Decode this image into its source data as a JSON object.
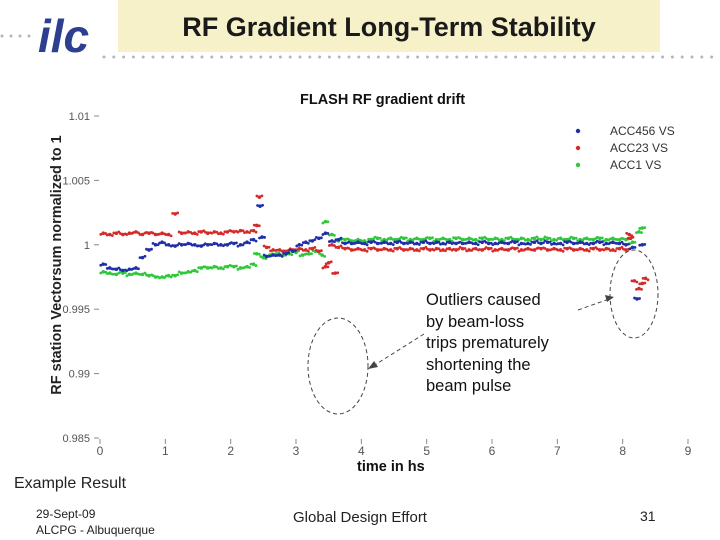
{
  "slide": {
    "title": "RF Gradient Long-Term Stability",
    "example_label": "Example Result",
    "footer_date": "29-Sept-09",
    "footer_venue": "ALCPG - Albuquerque",
    "footer_center": "Global Design Effort",
    "page_number": "31",
    "callout_text": "Outliers caused\nby beam-loss\ntrips prematurely\nshortening the\nbeam pulse",
    "logo_text": "ilc",
    "colors": {
      "title_background": "#f6f1c8",
      "logo": "#2d3f8f",
      "dots": "#b6b6b6"
    }
  },
  "chart_data": {
    "type": "scatter",
    "title": "FLASH RF gradient drift",
    "xlabel": "time in hs",
    "ylabel": "RF station Vectorsum normalized to 1",
    "xlim": [
      0,
      9
    ],
    "ylim": [
      0.985,
      1.01
    ],
    "xticks": [
      "0",
      "1",
      "2",
      "3",
      "4",
      "5",
      "6",
      "7",
      "8",
      "9"
    ],
    "yticks": [
      "0.985",
      "0.99",
      "0.995",
      "1",
      "1.005",
      "1.01"
    ],
    "legend_position": "top-right",
    "grid": false,
    "series": [
      {
        "name": "ACC456 VS",
        "color": "#1f2fa8",
        "points": [
          [
            0.05,
            0.9985
          ],
          [
            0.15,
            0.9982
          ],
          [
            0.25,
            0.9981
          ],
          [
            0.35,
            0.998
          ],
          [
            0.45,
            0.9981
          ],
          [
            0.55,
            0.9982
          ],
          [
            0.65,
            0.999
          ],
          [
            0.75,
            0.9996
          ],
          [
            0.85,
            1.0
          ],
          [
            0.95,
            1.0002
          ],
          [
            1.05,
            1.0
          ],
          [
            1.15,
            0.9999
          ],
          [
            1.25,
            1.0
          ],
          [
            1.35,
            1.0001
          ],
          [
            1.45,
            1.0
          ],
          [
            1.55,
            0.9999
          ],
          [
            1.65,
            1.0
          ],
          [
            1.75,
            1.0001
          ],
          [
            1.85,
            1.0
          ],
          [
            1.95,
            1.0
          ],
          [
            2.05,
            1.0001
          ],
          [
            2.15,
            1.0
          ],
          [
            2.25,
            1.0002
          ],
          [
            2.35,
            1.0004
          ],
          [
            2.45,
            1.003
          ],
          [
            2.48,
            1.0006
          ],
          [
            2.55,
            0.9991
          ],
          [
            2.65,
            0.9992
          ],
          [
            2.75,
            0.9992
          ],
          [
            2.85,
            0.9993
          ],
          [
            2.95,
            0.9995
          ],
          [
            3.05,
            1.0
          ],
          [
            3.15,
            1.0002
          ],
          [
            3.25,
            1.0003
          ],
          [
            3.35,
            1.0005
          ],
          [
            3.45,
            1.0009
          ],
          [
            3.55,
            1.0003
          ],
          [
            3.65,
            1.0004
          ],
          [
            3.75,
            1.0001
          ],
          [
            3.85,
            1.0001
          ],
          [
            3.95,
            1.0002
          ],
          [
            4.05,
            1.0001
          ],
          [
            4.15,
            1.0002
          ],
          [
            4.25,
            1.0001
          ],
          [
            4.35,
            1.0002
          ],
          [
            4.45,
            1.0001
          ],
          [
            4.55,
            1.0002
          ],
          [
            4.65,
            1.0001
          ],
          [
            4.75,
            1.0002
          ],
          [
            4.85,
            1.0001
          ],
          [
            4.95,
            1.0002
          ],
          [
            5.05,
            1.0001
          ],
          [
            5.15,
            1.0002
          ],
          [
            5.25,
            1.0001
          ],
          [
            5.35,
            1.0002
          ],
          [
            5.45,
            1.0001
          ],
          [
            5.55,
            1.0001
          ],
          [
            5.65,
            1.0002
          ],
          [
            5.75,
            1.0001
          ],
          [
            5.85,
            1.0002
          ],
          [
            5.95,
            1.0001
          ],
          [
            6.05,
            1.0001
          ],
          [
            6.15,
            1.0002
          ],
          [
            6.25,
            1.0001
          ],
          [
            6.35,
            1.0002
          ],
          [
            6.45,
            1.0001
          ],
          [
            6.55,
            1.0001
          ],
          [
            6.65,
            1.0002
          ],
          [
            6.75,
            1.0001
          ],
          [
            6.85,
            1.0002
          ],
          [
            6.95,
            1.0001
          ],
          [
            7.05,
            1.0001
          ],
          [
            7.15,
            1.0002
          ],
          [
            7.25,
            1.0001
          ],
          [
            7.35,
            1.0002
          ],
          [
            7.45,
            1.0001
          ],
          [
            7.55,
            1.0001
          ],
          [
            7.65,
            1.0002
          ],
          [
            7.75,
            1.0001
          ],
          [
            7.85,
            1.0002
          ],
          [
            7.95,
            1.0001
          ],
          [
            8.05,
            1.0
          ],
          [
            8.15,
            0.9998
          ],
          [
            8.22,
            0.9958
          ],
          [
            8.3,
            1.0
          ]
        ]
      },
      {
        "name": "ACC23 VS",
        "color": "#d42a2a",
        "points": [
          [
            0.05,
            1.0009
          ],
          [
            0.15,
            1.0008
          ],
          [
            0.25,
            1.0009
          ],
          [
            0.35,
            1.0008
          ],
          [
            0.45,
            1.0009
          ],
          [
            0.55,
            1.001
          ],
          [
            0.65,
            1.0008
          ],
          [
            0.75,
            1.0009
          ],
          [
            0.85,
            1.0008
          ],
          [
            0.95,
            1.0009
          ],
          [
            1.05,
            1.0008
          ],
          [
            1.15,
            1.0024
          ],
          [
            1.25,
            1.0009
          ],
          [
            1.35,
            1.001
          ],
          [
            1.45,
            1.0009
          ],
          [
            1.55,
            1.001
          ],
          [
            1.65,
            1.0009
          ],
          [
            1.75,
            1.001
          ],
          [
            1.85,
            1.0009
          ],
          [
            1.95,
            1.001
          ],
          [
            2.05,
            1.001
          ],
          [
            2.15,
            1.0011
          ],
          [
            2.25,
            1.001
          ],
          [
            2.35,
            1.0011
          ],
          [
            2.4,
            1.0015
          ],
          [
            2.44,
            1.0037
          ],
          [
            2.55,
            0.9998
          ],
          [
            2.65,
            0.9996
          ],
          [
            2.75,
            0.9996
          ],
          [
            2.85,
            0.9995
          ],
          [
            2.95,
            0.9996
          ],
          [
            3.05,
            0.9997
          ],
          [
            3.15,
            0.9996
          ],
          [
            3.25,
            0.9997
          ],
          [
            3.35,
            0.9995
          ],
          [
            3.45,
            0.9983
          ],
          [
            3.5,
            0.9986
          ],
          [
            3.55,
            1.0
          ],
          [
            3.6,
            0.9978
          ],
          [
            3.65,
            0.9998
          ],
          [
            3.75,
            0.9997
          ],
          [
            3.85,
            0.9996
          ],
          [
            3.95,
            0.9997
          ],
          [
            4.05,
            0.9996
          ],
          [
            4.15,
            0.9997
          ],
          [
            4.25,
            0.9996
          ],
          [
            4.35,
            0.9997
          ],
          [
            4.45,
            0.9996
          ],
          [
            4.55,
            0.9997
          ],
          [
            4.65,
            0.9996
          ],
          [
            4.75,
            0.9997
          ],
          [
            4.85,
            0.9996
          ],
          [
            4.95,
            0.9997
          ],
          [
            5.05,
            0.9996
          ],
          [
            5.15,
            0.9997
          ],
          [
            5.25,
            0.9996
          ],
          [
            5.35,
            0.9997
          ],
          [
            5.45,
            0.9996
          ],
          [
            5.55,
            0.9997
          ],
          [
            5.65,
            0.9996
          ],
          [
            5.75,
            0.9997
          ],
          [
            5.85,
            0.9996
          ],
          [
            5.95,
            0.9997
          ],
          [
            6.05,
            0.9996
          ],
          [
            6.15,
            0.9997
          ],
          [
            6.25,
            0.9996
          ],
          [
            6.35,
            0.9997
          ],
          [
            6.45,
            0.9996
          ],
          [
            6.55,
            0.9997
          ],
          [
            6.65,
            0.9996
          ],
          [
            6.75,
            0.9997
          ],
          [
            6.85,
            0.9996
          ],
          [
            6.95,
            0.9997
          ],
          [
            7.05,
            0.9996
          ],
          [
            7.15,
            0.9997
          ],
          [
            7.25,
            0.9996
          ],
          [
            7.35,
            0.9997
          ],
          [
            7.45,
            0.9996
          ],
          [
            7.55,
            0.9997
          ],
          [
            7.65,
            0.9996
          ],
          [
            7.75,
            0.9997
          ],
          [
            7.85,
            0.9996
          ],
          [
            7.95,
            0.9997
          ],
          [
            8.05,
            0.9996
          ],
          [
            8.1,
            1.0008
          ],
          [
            8.12,
            1.0005
          ],
          [
            8.18,
            0.9972
          ],
          [
            8.25,
            0.9966
          ],
          [
            8.3,
            0.997
          ],
          [
            8.35,
            0.9974
          ]
        ]
      },
      {
        "name": "ACC1 VS",
        "color": "#2fc83a",
        "points": [
          [
            0.05,
            0.9979
          ],
          [
            0.15,
            0.9978
          ],
          [
            0.25,
            0.9977
          ],
          [
            0.35,
            0.9978
          ],
          [
            0.45,
            0.9977
          ],
          [
            0.55,
            0.9978
          ],
          [
            0.65,
            0.9977
          ],
          [
            0.75,
            0.9976
          ],
          [
            0.85,
            0.9975
          ],
          [
            0.95,
            0.9975
          ],
          [
            1.05,
            0.9976
          ],
          [
            1.15,
            0.9976
          ],
          [
            1.25,
            0.9978
          ],
          [
            1.35,
            0.9979
          ],
          [
            1.45,
            0.998
          ],
          [
            1.55,
            0.9982
          ],
          [
            1.65,
            0.9982
          ],
          [
            1.75,
            0.9983
          ],
          [
            1.85,
            0.9982
          ],
          [
            1.95,
            0.9983
          ],
          [
            2.05,
            0.9983
          ],
          [
            2.15,
            0.9982
          ],
          [
            2.25,
            0.9983
          ],
          [
            2.35,
            0.9985
          ],
          [
            2.4,
            0.9993
          ],
          [
            2.5,
            0.999
          ],
          [
            2.6,
            0.9992
          ],
          [
            2.7,
            0.9993
          ],
          [
            2.8,
            0.9992
          ],
          [
            2.9,
            0.9993
          ],
          [
            3.0,
            0.9994
          ],
          [
            3.1,
            0.9992
          ],
          [
            3.2,
            0.9993
          ],
          [
            3.3,
            0.9995
          ],
          [
            3.4,
            0.9992
          ],
          [
            3.45,
            1.0018
          ],
          [
            3.55,
            1.0008
          ],
          [
            3.65,
            1.0003
          ],
          [
            3.75,
            1.0004
          ],
          [
            3.85,
            1.0003
          ],
          [
            3.95,
            1.0004
          ],
          [
            4.05,
            1.0003
          ],
          [
            4.15,
            1.0004
          ],
          [
            4.25,
            1.0005
          ],
          [
            4.35,
            1.0004
          ],
          [
            4.45,
            1.0005
          ],
          [
            4.55,
            1.0004
          ],
          [
            4.65,
            1.0005
          ],
          [
            4.75,
            1.0004
          ],
          [
            4.85,
            1.0005
          ],
          [
            4.95,
            1.0004
          ],
          [
            5.05,
            1.0005
          ],
          [
            5.15,
            1.0004
          ],
          [
            5.25,
            1.0005
          ],
          [
            5.35,
            1.0004
          ],
          [
            5.45,
            1.0005
          ],
          [
            5.55,
            1.0004
          ],
          [
            5.65,
            1.0005
          ],
          [
            5.75,
            1.0004
          ],
          [
            5.85,
            1.0005
          ],
          [
            5.95,
            1.0004
          ],
          [
            6.05,
            1.0005
          ],
          [
            6.15,
            1.0004
          ],
          [
            6.25,
            1.0005
          ],
          [
            6.35,
            1.0004
          ],
          [
            6.45,
            1.0005
          ],
          [
            6.55,
            1.0004
          ],
          [
            6.65,
            1.0005
          ],
          [
            6.75,
            1.0004
          ],
          [
            6.85,
            1.0005
          ],
          [
            6.95,
            1.0004
          ],
          [
            7.05,
            1.0005
          ],
          [
            7.15,
            1.0004
          ],
          [
            7.25,
            1.0005
          ],
          [
            7.35,
            1.0004
          ],
          [
            7.45,
            1.0005
          ],
          [
            7.55,
            1.0004
          ],
          [
            7.65,
            1.0005
          ],
          [
            7.75,
            1.0004
          ],
          [
            7.85,
            1.0005
          ],
          [
            7.95,
            1.0004
          ],
          [
            8.05,
            1.0004
          ],
          [
            8.15,
            1.0002
          ],
          [
            8.25,
            1.001
          ],
          [
            8.3,
            1.0013
          ]
        ]
      }
    ],
    "annotations": [
      "Outliers caused by beam-loss trips prematurely shortening the beam pulse"
    ]
  }
}
